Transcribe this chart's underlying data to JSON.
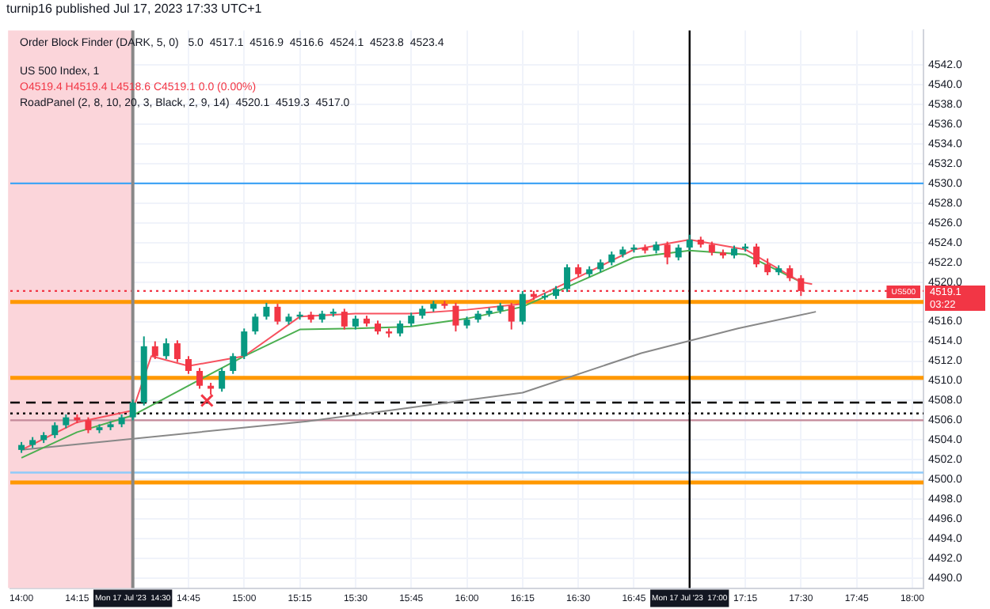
{
  "chart_data": {
    "type": "candlestick",
    "title": "turnip16 published Jul 17, 2023 17:33 UTC+1",
    "annotations": [
      "Order Block Finder (DARK, 5, 0)   5.0  4517.1  4516.9  4516.6  4524.1  4523.8  4523.4",
      "US 500 Index, 1",
      "O4519.4 H4519.4 L4518.6 C4519.1 0.0 (0.00%)",
      "RoadPanel (2, 8, 10, 20, 3, Black, 2, 9, 14)  4520.1  4519.3  4517.0",
      "4519.1",
      "03:22"
    ],
    "x": [
      14,
      14.05,
      14.1,
      14.15,
      14.2,
      14.25,
      14.3,
      14.35,
      14.4,
      14.45,
      14.5,
      14.55,
      14.6,
      14.65,
      14.7,
      14.75,
      14.8,
      14.85,
      14.9,
      14.95,
      15,
      15.05,
      15.1,
      15.15,
      15.2,
      15.25,
      15.3,
      15.35,
      15.4,
      15.45,
      15.5,
      15.55,
      15.6,
      15.65,
      15.7,
      15.75,
      15.8,
      15.85,
      15.9,
      15.95,
      16,
      16.05,
      16.1,
      16.15,
      16.2,
      16.25,
      16.3,
      16.35,
      16.4,
      16.45,
      16.5,
      16.55,
      16.6,
      16.65,
      16.7,
      16.75,
      16.8,
      16.85,
      16.9,
      16.95,
      17,
      17.05,
      17.1,
      17.15,
      17.2,
      17.25,
      17.3,
      17.35,
      17.4,
      17.45,
      17.5
    ],
    "ohlc": [
      [
        4503.0,
        4503.8,
        4502.7,
        4503.5
      ],
      [
        4503.5,
        4504.3,
        4503.2,
        4504.0
      ],
      [
        4504.0,
        4504.8,
        4503.7,
        4504.5
      ],
      [
        4504.5,
        4505.8,
        4504.2,
        4505.5
      ],
      [
        4505.5,
        4506.6,
        4505.2,
        4506.3
      ],
      [
        4506.3,
        4506.6,
        4505.7,
        4506.0
      ],
      [
        4506.0,
        4506.3,
        4504.7,
        4505.0
      ],
      [
        4505.0,
        4505.6,
        4504.7,
        4505.3
      ],
      [
        4505.3,
        4505.9,
        4505.0,
        4505.6
      ],
      [
        4505.6,
        4506.6,
        4505.3,
        4506.3
      ],
      [
        4506.3,
        4508.1,
        4506.0,
        4507.8
      ],
      [
        4507.8,
        4514.5,
        4507.5,
        4513.5
      ],
      [
        4513.5,
        4514.0,
        4512.2,
        4512.5
      ],
      [
        4512.5,
        4514.3,
        4512.2,
        4513.8
      ],
      [
        4513.8,
        4514.1,
        4511.9,
        4512.2
      ],
      [
        4512.2,
        4512.5,
        4510.7,
        4511.0
      ],
      [
        4511.0,
        4511.3,
        4509.2,
        4509.5
      ],
      [
        4509.5,
        4509.8,
        4508.6,
        4509.2
      ],
      [
        4509.2,
        4511.3,
        4508.9,
        4511.0
      ],
      [
        4511.0,
        4512.8,
        4510.7,
        4512.5
      ],
      [
        4512.5,
        4515.3,
        4512.2,
        4515.0
      ],
      [
        4515.0,
        4516.8,
        4514.7,
        4516.5
      ],
      [
        4516.5,
        4517.9,
        4516.2,
        4517.5
      ],
      [
        4517.5,
        4517.8,
        4515.7,
        4516.0
      ],
      [
        4516.0,
        4516.8,
        4515.7,
        4516.5
      ],
      [
        4516.5,
        4517.0,
        4516.2,
        4516.7
      ],
      [
        4516.7,
        4517.0,
        4515.9,
        4516.2
      ],
      [
        4516.2,
        4517.1,
        4515.9,
        4516.8
      ],
      [
        4516.8,
        4517.3,
        4516.5,
        4517.0
      ],
      [
        4517.0,
        4517.3,
        4515.2,
        4515.5
      ],
      [
        4515.5,
        4516.6,
        4515.2,
        4516.3
      ],
      [
        4516.3,
        4516.6,
        4515.5,
        4515.8
      ],
      [
        4515.8,
        4516.1,
        4514.7,
        4515.0
      ],
      [
        4515.0,
        4515.3,
        4514.4,
        4514.8
      ],
      [
        4514.8,
        4516.1,
        4514.5,
        4515.8
      ],
      [
        4515.8,
        4516.9,
        4515.5,
        4516.6
      ],
      [
        4516.6,
        4517.6,
        4516.3,
        4517.3
      ],
      [
        4517.3,
        4518.1,
        4517.0,
        4517.8
      ],
      [
        4517.8,
        4518.1,
        4517.3,
        4517.6
      ],
      [
        4517.6,
        4517.9,
        4515.0,
        4515.6
      ],
      [
        4515.6,
        4516.5,
        4515.3,
        4516.2
      ],
      [
        4516.2,
        4517.1,
        4515.9,
        4516.8
      ],
      [
        4516.8,
        4517.4,
        4516.5,
        4517.1
      ],
      [
        4517.1,
        4517.9,
        4516.8,
        4517.6
      ],
      [
        4517.6,
        4517.9,
        4515.2,
        4516.0
      ],
      [
        4516.0,
        4519.1,
        4515.7,
        4518.8
      ],
      [
        4518.8,
        4519.1,
        4518.2,
        4518.5
      ],
      [
        4518.5,
        4518.9,
        4518.2,
        4518.6
      ],
      [
        4518.6,
        4519.6,
        4518.3,
        4519.3
      ],
      [
        4519.3,
        4521.8,
        4519.0,
        4521.5
      ],
      [
        4521.5,
        4521.8,
        4520.5,
        4520.8
      ],
      [
        4520.8,
        4521.6,
        4520.5,
        4521.3
      ],
      [
        4521.3,
        4522.3,
        4521.0,
        4522.0
      ],
      [
        4522.0,
        4523.1,
        4521.7,
        4522.8
      ],
      [
        4522.8,
        4523.6,
        4522.5,
        4523.3
      ],
      [
        4523.3,
        4523.8,
        4523.0,
        4523.5
      ],
      [
        4523.5,
        4523.8,
        4522.9,
        4523.2
      ],
      [
        4523.2,
        4524.1,
        4522.9,
        4523.8
      ],
      [
        4523.8,
        4524.1,
        4521.8,
        4522.5
      ],
      [
        4522.5,
        4523.8,
        4522.2,
        4523.5
      ],
      [
        4523.5,
        4524.8,
        4523.2,
        4524.3
      ],
      [
        4524.3,
        4524.6,
        4523.5,
        4523.8
      ],
      [
        4523.8,
        4524.1,
        4522.7,
        4523.0
      ],
      [
        4523.0,
        4523.3,
        4522.4,
        4522.7
      ],
      [
        4522.7,
        4523.7,
        4522.4,
        4523.4
      ],
      [
        4523.4,
        4523.9,
        4523.1,
        4523.6
      ],
      [
        4523.6,
        4523.9,
        4521.5,
        4521.8
      ],
      [
        4521.8,
        4522.4,
        4520.7,
        4521.0
      ],
      [
        4521.0,
        4521.7,
        4520.7,
        4521.4
      ],
      [
        4521.4,
        4521.7,
        4520.1,
        4520.4
      ],
      [
        4520.4,
        4520.7,
        4518.6,
        4519.1
      ]
    ],
    "colors": [
      "#089981",
      "#089981",
      "#089981",
      "#089981",
      "#089981",
      "#f23645",
      "#f23645",
      "#089981",
      "#089981",
      "#089981",
      "#089981",
      "#089981",
      "#f23645",
      "#089981",
      "#f23645",
      "#f23645",
      "#f23645",
      "#f23645",
      "#089981",
      "#089981",
      "#089981",
      "#089981",
      "#089981",
      "#f23645",
      "#089981",
      "#089981",
      "#f23645",
      "#089981",
      "#089981",
      "#f23645",
      "#089981",
      "#f23645",
      "#f23645",
      "#f23645",
      "#089981",
      "#089981",
      "#089981",
      "#089981",
      "#f23645",
      "#f23645",
      "#089981",
      "#089981",
      "#089981",
      "#089981",
      "#f23645",
      "#089981",
      "#f23645",
      "#089981",
      "#089981",
      "#089981",
      "#f23645",
      "#089981",
      "#089981",
      "#089981",
      "#089981",
      "#089981",
      "#f23645",
      "#089981",
      "#f23645",
      "#089981",
      "#089981",
      "#f23645",
      "#f23645",
      "#f23645",
      "#089981",
      "#089981",
      "#f23645",
      "#f23645",
      "#089981",
      "#f23645",
      "#f23645"
    ],
    "series": [
      {
        "type": "line",
        "color": "#f7525f",
        "x": [
          14,
          14.25,
          14.5,
          14.583,
          14.75,
          15,
          15.25,
          15.5,
          15.75,
          16,
          16.25,
          16.5,
          16.75,
          17,
          17.25,
          17.5,
          17.55
        ],
        "values": [
          4503.0,
          4505.8,
          4507.0,
          4512.5,
          4511.5,
          4512.5,
          4516.5,
          4516.8,
          4516.8,
          4517.2,
          4517.8,
          4520.5,
          4523.3,
          4524.3,
          4523.3,
          4520.0,
          4519.8
        ]
      },
      {
        "type": "line",
        "color": "#4caf50",
        "x": [
          14,
          14.25,
          14.5,
          14.75,
          15,
          15.25,
          15.5,
          15.75,
          16,
          16.25,
          16.5,
          16.75,
          17,
          17.25,
          17.5
        ],
        "values": [
          4502.2,
          4504.8,
          4506.5,
          4509.5,
          4512.5,
          4515.2,
          4515.3,
          4515.5,
          4516.3,
          4517.5,
          4520.0,
          4522.5,
          4523.2,
          4522.8,
          4520.0
        ]
      },
      {
        "type": "line",
        "color": "#888888",
        "x": [
          14,
          15.283,
          16.25,
          16.783,
          17.217,
          17.567
        ],
        "values": [
          4503.0,
          4505.9,
          4508.8,
          4512.8,
          4515.3,
          4517.0
        ]
      },
      {
        "type": "scatter",
        "marker": "cross",
        "color": "#f23645",
        "x": [
          14.833
        ],
        "values": [
          4508.0
        ]
      }
    ],
    "ref_lines": [
      {
        "axis": "y",
        "value": 4530.0,
        "color": "#42a5f5"
      },
      {
        "axis": "y",
        "value": 4519.1,
        "label": "US500",
        "color": "#f23645",
        "line_style": "dotted"
      },
      {
        "axis": "y",
        "value": 4518.0,
        "color": "#ff9800"
      },
      {
        "axis": "y",
        "value": 4510.3,
        "color": "#ff9800"
      },
      {
        "axis": "y",
        "value": 4507.8,
        "color": "#000000",
        "line_style": "dashed"
      },
      {
        "axis": "y",
        "value": 4506.7,
        "color": "#000000",
        "line_style": "dotted"
      },
      {
        "axis": "y",
        "value": 4506.0,
        "color": "#c48a9a"
      },
      {
        "axis": "y",
        "value": 4500.7,
        "color": "#90caf9"
      },
      {
        "axis": "y",
        "value": 4499.7,
        "color": "#ff9800"
      },
      {
        "axis": "x",
        "value": 14.5,
        "label": "Mon 17 Jul '23  14:30",
        "color": "#888888"
      },
      {
        "axis": "x",
        "value": 17,
        "label": "Mon 17 Jul '23  17:00",
        "color": "#000000"
      }
    ],
    "bands": [
      {
        "axis": "x",
        "from": 13.94,
        "to": 14.5,
        "color": "#fbd5da"
      }
    ],
    "xlim": [
      13.95,
      18.05
    ],
    "xticks": [
      {
        "value": 14,
        "label": "14:00"
      },
      {
        "value": 14.25,
        "label": "14:15"
      },
      {
        "value": 14.5,
        "label": null
      },
      {
        "value": 14.75,
        "label": "14:45"
      },
      {
        "value": 15,
        "label": "15:00"
      },
      {
        "value": 15.25,
        "label": "15:15"
      },
      {
        "value": 15.5,
        "label": "15:30"
      },
      {
        "value": 15.75,
        "label": "15:45"
      },
      {
        "value": 16,
        "label": "16:00"
      },
      {
        "value": 16.25,
        "label": "16:15"
      },
      {
        "value": 16.5,
        "label": "16:30"
      },
      {
        "value": 16.75,
        "label": "16:45"
      },
      {
        "value": 17,
        "label": null
      },
      {
        "value": 17.25,
        "label": "17:15"
      },
      {
        "value": 17.5,
        "label": "17:30"
      },
      {
        "value": 17.75,
        "label": "17:45"
      },
      {
        "value": 18,
        "label": "18:00"
      }
    ],
    "ylim": [
      4489,
      4545.5
    ],
    "yticks": [
      {
        "value": 4490,
        "label": "4490.0"
      },
      {
        "value": 4492,
        "label": "4492.0"
      },
      {
        "value": 4494,
        "label": "4494.0"
      },
      {
        "value": 4496,
        "label": "4496.0"
      },
      {
        "value": 4498,
        "label": "4498.0"
      },
      {
        "value": 4500,
        "label": "4500.0"
      },
      {
        "value": 4502,
        "label": "4502.0"
      },
      {
        "value": 4504,
        "label": "4504.0"
      },
      {
        "value": 4506,
        "label": "4506.0"
      },
      {
        "value": 4508,
        "label": "4508.0"
      },
      {
        "value": 4510,
        "label": "4510.0"
      },
      {
        "value": 4512,
        "label": "4512.0"
      },
      {
        "value": 4514,
        "label": "4514.0"
      },
      {
        "value": 4516,
        "label": "4516.0"
      },
      {
        "value": 4518,
        "label": null
      },
      {
        "value": 4520,
        "label": "4520.0"
      },
      {
        "value": 4522,
        "label": "4522.0"
      },
      {
        "value": 4524,
        "label": "4524.0"
      },
      {
        "value": 4526,
        "label": "4526.0"
      },
      {
        "value": 4528,
        "label": "4528.0"
      },
      {
        "value": 4530,
        "label": "4530.0"
      },
      {
        "value": 4532,
        "label": "4532.0"
      },
      {
        "value": 4534,
        "label": "4534.0"
      },
      {
        "value": 4536,
        "label": "4536.0"
      },
      {
        "value": 4538,
        "label": "4538.0"
      },
      {
        "value": 4540,
        "label": "4540.0"
      },
      {
        "value": 4542,
        "label": "4542.0"
      }
    ],
    "grid": true
  }
}
